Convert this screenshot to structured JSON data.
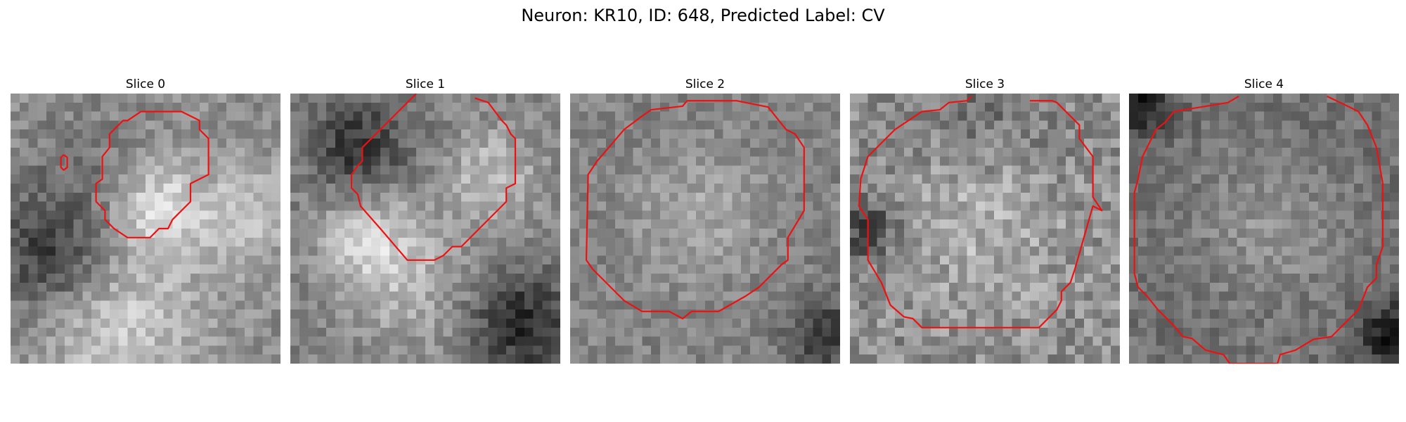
{
  "figure": {
    "title": "Neuron: KR10, ID: 648, Predicted Label: CV",
    "contour_color": "#ee1111"
  },
  "panels": [
    {
      "title": "Slice 0"
    },
    {
      "title": "Slice 1"
    },
    {
      "title": "Slice 2"
    },
    {
      "title": "Slice 3"
    },
    {
      "title": "Slice 4"
    }
  ]
}
